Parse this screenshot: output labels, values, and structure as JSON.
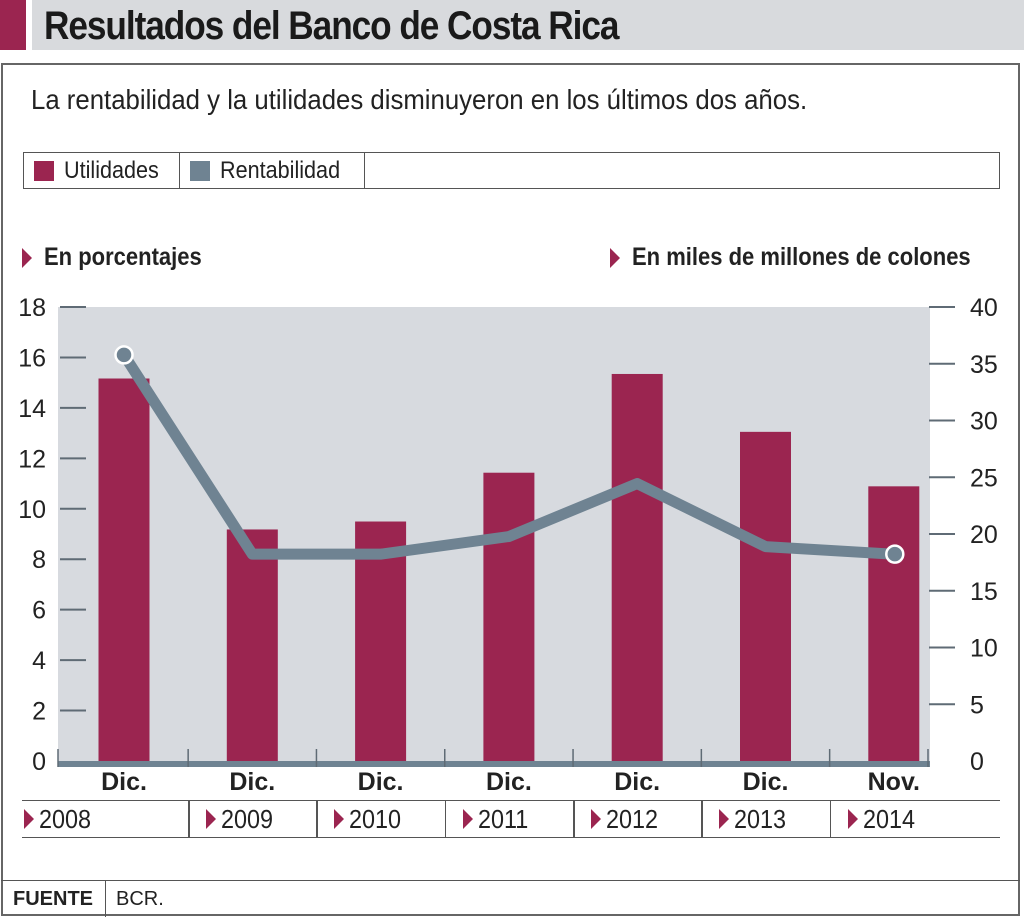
{
  "title": "Resultados del Banco de Costa Rica",
  "subtitle": "La rentabilidad y la utilidades disminuyeron en los últimos dos años.",
  "legend": [
    {
      "label": "Utilidades",
      "color": "#9b2550"
    },
    {
      "label": "Rentabilidad",
      "color": "#6f8392"
    }
  ],
  "axis_titles": {
    "left": "En porcentajes",
    "right": "En miles de millones de colones"
  },
  "footer": {
    "label": "FUENTE",
    "value": "BCR."
  },
  "colors": {
    "bar": "#9b2550",
    "line": "#6f8392",
    "plot_bg": "#d7dadf",
    "accent": "#9b2550"
  },
  "chart_data": {
    "type": "bar",
    "title": "Resultados del Banco de Costa Rica",
    "subtitle": "La rentabilidad y la utilidades disminuyeron en los últimos dos años.",
    "categories": [
      "Dic. 2008",
      "Dic. 2009",
      "Dic. 2010",
      "Dic. 2011",
      "Dic. 2012",
      "Dic. 2013",
      "Nov. 2014"
    ],
    "months": [
      "Dic.",
      "Dic.",
      "Dic.",
      "Dic.",
      "Dic.",
      "Dic.",
      "Nov."
    ],
    "years": [
      "2008",
      "2009",
      "2010",
      "2011",
      "2012",
      "2013",
      "2014"
    ],
    "series": [
      {
        "name": "Utilidades",
        "type": "bar",
        "axis": "right",
        "unit": "miles de millones de colones",
        "values": [
          33.7,
          20.4,
          21.1,
          25.4,
          34.1,
          29.0,
          24.2
        ]
      },
      {
        "name": "Rentabilidad",
        "type": "line",
        "axis": "left",
        "unit": "%",
        "values": [
          16.1,
          8.2,
          8.2,
          8.9,
          11.0,
          8.5,
          8.2
        ]
      }
    ],
    "y_left": {
      "label": "En porcentajes",
      "range": [
        0,
        18
      ],
      "ticks": [
        0,
        2,
        4,
        6,
        8,
        10,
        12,
        14,
        16,
        18
      ]
    },
    "y_right": {
      "label": "En miles de millones de colones",
      "range": [
        0,
        40
      ],
      "ticks": [
        0,
        5,
        10,
        15,
        20,
        25,
        30,
        35,
        40
      ]
    },
    "highlighted_points": [
      "Dic. 2008",
      "Nov. 2014"
    ],
    "grid": false,
    "legend_position": "top-left"
  }
}
